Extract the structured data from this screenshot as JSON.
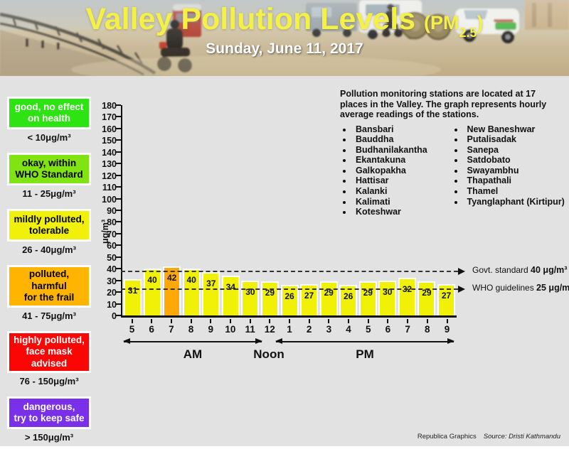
{
  "header": {
    "title": "Valley Pollution Levels",
    "pm_open": "(PM",
    "pm_sub": "2.5",
    "pm_close": ")",
    "date": "Sunday, June 11, 2017"
  },
  "legend": {
    "items": [
      {
        "label": "good, no effect\non health",
        "range": "< 10μg/m³",
        "color": "#2de412",
        "text_color": "#ffffff"
      },
      {
        "label": "okay, within\nWHO Standard",
        "range": "11 - 25μg/m³",
        "color": "#80e312",
        "text_color": "#000000"
      },
      {
        "label": "mildly polluted,\ntolerable",
        "range": "26 - 40μg/m³",
        "color": "#f0f00a",
        "text_color": "#000000"
      },
      {
        "label": "polluted, harmful\nfor the frail",
        "range": "41 - 75μg/m³",
        "color": "#ffb400",
        "text_color": "#000000"
      },
      {
        "label": "highly polluted,\nface mask advised",
        "range": "76 - 150μg/m³",
        "color": "#fb0505",
        "text_color": "#ffffff"
      },
      {
        "label": "dangerous,\ntry to keep safe",
        "range": "> 150μg/m³",
        "color": "#7a2fe8",
        "text_color": "#ffffff"
      }
    ]
  },
  "chart_data": {
    "type": "bar",
    "title": "Valley Pollution Levels (PM2.5)",
    "subtitle": "Sunday, June 11, 2017",
    "categories": [
      "5",
      "6",
      "7",
      "8",
      "9",
      "10",
      "11",
      "12",
      "1",
      "2",
      "3",
      "4",
      "5",
      "6",
      "7",
      "8",
      "9"
    ],
    "values": [
      31,
      40,
      42,
      40,
      37,
      34,
      30,
      29,
      26,
      27,
      29,
      26,
      29,
      30,
      32,
      29,
      27
    ],
    "bar_color": "#f1f107",
    "highlight_index": 2,
    "highlight_color": "#ffa806",
    "xlabel": "",
    "ylabel": "μg/m³",
    "ylim": [
      0,
      180
    ],
    "ytick_step": 10,
    "grid": false,
    "reference_lines": [
      {
        "value": 40,
        "label": "Govt. standard",
        "value_label": "40 μg/m³"
      },
      {
        "value": 25,
        "label": "WHO guidelines",
        "value_label": "25 μg/m³"
      }
    ],
    "axis_groups": [
      {
        "label": "AM"
      },
      {
        "label": "Noon"
      },
      {
        "label": "PM"
      }
    ]
  },
  "stations": {
    "intro": "Pollution monitoring stations are located at 17 places in the Valley. The graph represents hourly average readings of the stations.",
    "column1": [
      "Bansbari",
      "Bauddha",
      "Budhanilakantha",
      "Ekantakuna",
      "Galkopakha",
      "Hattisar",
      "Kalanki",
      "Kalimati",
      "Koteshwar"
    ],
    "column2": [
      "New Baneshwar",
      "Putalisadak",
      "Sanepa",
      "Satdobato",
      "Swayambhu",
      "Thapathali",
      "Thamel",
      "Tyanglaphant (Kirtipur)"
    ]
  },
  "footer": {
    "credit": "Republica Graphics",
    "source": "Source: Dristi Kathmandu"
  }
}
